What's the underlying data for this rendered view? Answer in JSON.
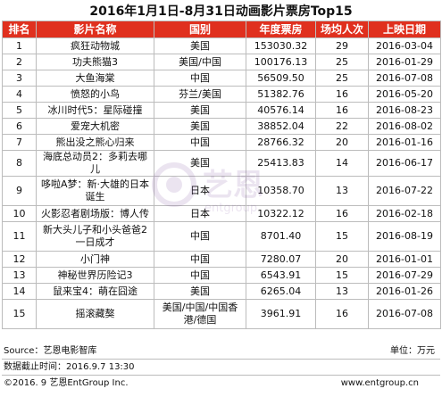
{
  "title": "2016年1月1日-8月31日动画影片票房Top15",
  "columns": [
    "排名",
    "影片名称",
    "国别",
    "年度票房",
    "场均人次",
    "上映日期"
  ],
  "rows": [
    {
      "rank": "1",
      "name": "疯狂动物城",
      "country": "美国",
      "box": "153030.32",
      "avg": "29",
      "date": "2016-03-04"
    },
    {
      "rank": "2",
      "name": "功夫熊猫3",
      "country": "美国/中国",
      "box": "100176.13",
      "avg": "25",
      "date": "2016-01-29"
    },
    {
      "rank": "3",
      "name": "大鱼海棠",
      "country": "中国",
      "box": "56509.50",
      "avg": "25",
      "date": "2016-07-08"
    },
    {
      "rank": "4",
      "name": "愤怒的小鸟",
      "country": "芬兰/美国",
      "box": "51382.76",
      "avg": "16",
      "date": "2016-05-20"
    },
    {
      "rank": "5",
      "name": "冰川时代5：星际碰撞",
      "country": "美国",
      "box": "40576.14",
      "avg": "16",
      "date": "2016-08-23"
    },
    {
      "rank": "6",
      "name": "爱宠大机密",
      "country": "美国",
      "box": "38852.04",
      "avg": "22",
      "date": "2016-08-02"
    },
    {
      "rank": "7",
      "name": "熊出没之熊心归来",
      "country": "中国",
      "box": "28766.32",
      "avg": "20",
      "date": "2016-01-16"
    },
    {
      "rank": "8",
      "name": "海底总动员2：多莉去哪儿",
      "country": "美国",
      "box": "25413.83",
      "avg": "14",
      "date": "2016-06-17"
    },
    {
      "rank": "9",
      "name": "哆啦A梦：新·大雄的日本诞生",
      "country": "日本",
      "box": "10358.70",
      "avg": "13",
      "date": "2016-07-22"
    },
    {
      "rank": "10",
      "name": "火影忍者剧场版：博人传",
      "country": "日本",
      "box": "10322.12",
      "avg": "16",
      "date": "2016-02-18"
    },
    {
      "rank": "11",
      "name": "新大头儿子和小头爸爸2一日成才",
      "country": "中国",
      "box": "8701.40",
      "avg": "15",
      "date": "2016-08-19"
    },
    {
      "rank": "12",
      "name": "小门神",
      "country": "中国",
      "box": "7280.07",
      "avg": "20",
      "date": "2016-01-01"
    },
    {
      "rank": "13",
      "name": "神秘世界历险记3",
      "country": "中国",
      "box": "6543.91",
      "avg": "15",
      "date": "2016-07-29"
    },
    {
      "rank": "14",
      "name": "鼠来宝4：萌在囧途",
      "country": "美国",
      "box": "6265.04",
      "avg": "13",
      "date": "2016-01-26"
    },
    {
      "rank": "15",
      "name": "摇滚藏獒",
      "country": "美国/中国/中国香港/德国",
      "box": "3961.91",
      "avg": "16",
      "date": "2016-07-08"
    }
  ],
  "footer": {
    "source": "Source：艺恩电影智库",
    "unit": "单位：万元",
    "cutoff": "数据截止时间：2016.9.7 13:30",
    "copyright": "©2016. 9 艺恩EntGroup Inc.",
    "url": "www.entgroup.cn"
  },
  "watermark": {
    "text": "艺恩",
    "subtext": "entgroup"
  },
  "colors": {
    "header_bg": "#e0301e",
    "header_text": "#ffffff",
    "border": "#bcbcbc",
    "watermark": "#7a4b9c"
  }
}
